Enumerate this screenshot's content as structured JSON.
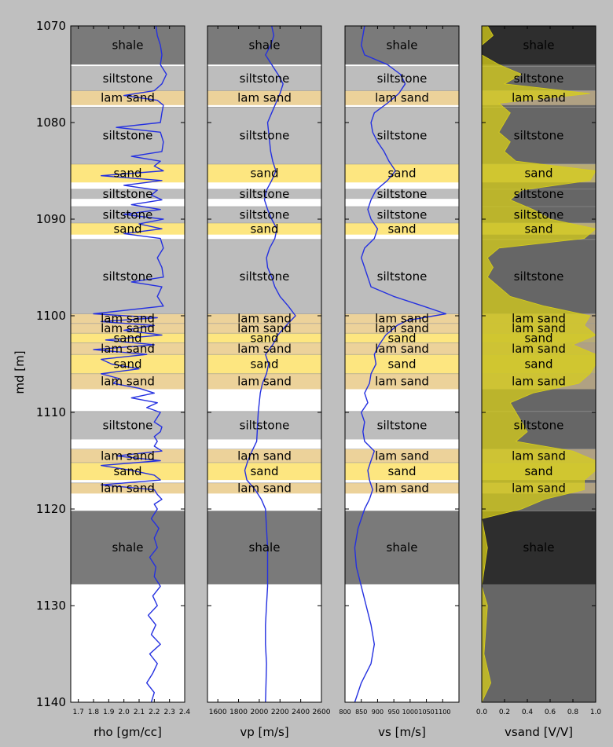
{
  "chart_data": {
    "type": "line",
    "y_axis": {
      "label": "md [m]",
      "range": [
        1070,
        1140
      ],
      "ticks": [
        1070,
        1080,
        1090,
        1100,
        1110,
        1120,
        1130,
        1140
      ]
    },
    "facies_colors": {
      "shale": "#7a7a7a",
      "shale_dark": "#2e2e2e",
      "siltstone": "#bdbdbd",
      "lam sand": "#ecd29a",
      "sand": "#fde680",
      "gap": "#ffffff",
      "vsand_bg": "#666666"
    },
    "facies": [
      {
        "top": 1070.0,
        "base": 1074.0,
        "label": "shale",
        "kind": "shale"
      },
      {
        "top": 1074.2,
        "base": 1076.7,
        "label": "siltstone",
        "kind": "siltstone"
      },
      {
        "top": 1076.7,
        "base": 1078.2,
        "label": "lam sand",
        "kind": "lam sand"
      },
      {
        "top": 1078.4,
        "base": 1084.3,
        "label": "siltstone",
        "kind": "siltstone"
      },
      {
        "top": 1084.3,
        "base": 1086.2,
        "label": "sand",
        "kind": "sand"
      },
      {
        "top": 1086.9,
        "base": 1087.9,
        "label": "siltstone",
        "kind": "siltstone"
      },
      {
        "top": 1088.7,
        "base": 1090.4,
        "label": "siltstone",
        "kind": "siltstone"
      },
      {
        "top": 1090.4,
        "base": 1091.6,
        "label": "sand",
        "kind": "sand"
      },
      {
        "top": 1092.1,
        "base": 1099.8,
        "label": "siltstone",
        "kind": "siltstone"
      },
      {
        "top": 1099.8,
        "base": 1100.8,
        "label": "lam sand",
        "kind": "lam sand"
      },
      {
        "top": 1100.8,
        "base": 1101.8,
        "label": "lam sand",
        "kind": "lam sand"
      },
      {
        "top": 1101.8,
        "base": 1102.8,
        "label": "sand",
        "kind": "sand"
      },
      {
        "top": 1102.8,
        "base": 1104.0,
        "label": "lam sand",
        "kind": "lam sand"
      },
      {
        "top": 1104.0,
        "base": 1106.0,
        "label": "sand",
        "kind": "sand"
      },
      {
        "top": 1106.0,
        "base": 1107.6,
        "label": "lam sand",
        "kind": "lam sand"
      },
      {
        "top": 1109.9,
        "base": 1112.8,
        "label": "siltstone",
        "kind": "siltstone"
      },
      {
        "top": 1113.8,
        "base": 1115.2,
        "label": "lam sand",
        "kind": "lam sand"
      },
      {
        "top": 1115.2,
        "base": 1117.0,
        "label": "sand",
        "kind": "sand"
      },
      {
        "top": 1117.3,
        "base": 1118.4,
        "label": "lam sand",
        "kind": "lam sand"
      },
      {
        "top": 1120.2,
        "base": 1127.8,
        "label": "shale",
        "kind": "shale"
      }
    ],
    "tracks": [
      {
        "xlabel": "rho [gm/cc]",
        "xlim": [
          1.65,
          2.4
        ],
        "ticks": [
          1.7,
          1.8,
          1.9,
          2.0,
          2.1,
          2.2,
          2.3,
          2.4
        ],
        "tick_labels": [
          "1.7",
          "1.8",
          "1.9",
          "2.0",
          "2.1",
          "2.2",
          "2.3",
          "2.4"
        ],
        "color": "#2430e0",
        "depth": [
          1070,
          1071,
          1072,
          1073,
          1074,
          1075,
          1076,
          1076.7,
          1077.2,
          1077.7,
          1078.2,
          1079,
          1080,
          1080.5,
          1081,
          1082,
          1083,
          1083.5,
          1084,
          1084.5,
          1085,
          1085.5,
          1086,
          1086.5,
          1087,
          1087.5,
          1088,
          1088.5,
          1089,
          1089.5,
          1090,
          1090.5,
          1091,
          1091.5,
          1092,
          1093,
          1094,
          1095,
          1096,
          1096.5,
          1097,
          1098,
          1099,
          1099.8,
          1100.2,
          1100.6,
          1101,
          1101.5,
          1102,
          1102.5,
          1103,
          1103.5,
          1104,
          1104.5,
          1105,
          1105.5,
          1106,
          1106.5,
          1107,
          1107.5,
          1108,
          1108.5,
          1109,
          1109.5,
          1110,
          1110.5,
          1111,
          1111.5,
          1112,
          1112.5,
          1113,
          1113.5,
          1114,
          1114.5,
          1115,
          1115.5,
          1116,
          1116.5,
          1117,
          1117.5,
          1118,
          1118.5,
          1119,
          1119.5,
          1120,
          1121,
          1122,
          1123,
          1124,
          1125,
          1126,
          1127,
          1128,
          1129,
          1130,
          1131,
          1132,
          1133,
          1134,
          1135,
          1136,
          1137,
          1138,
          1139,
          1140
        ],
        "values": [
          2.21,
          2.22,
          2.24,
          2.25,
          2.24,
          2.28,
          2.25,
          2.2,
          2.0,
          2.22,
          2.26,
          2.25,
          2.24,
          1.95,
          2.24,
          2.26,
          2.25,
          2.05,
          2.24,
          2.2,
          2.26,
          1.85,
          2.25,
          2.0,
          2.22,
          2.18,
          2.25,
          2.05,
          2.24,
          2.0,
          2.26,
          2.1,
          2.25,
          2.0,
          2.24,
          2.26,
          2.22,
          2.25,
          2.26,
          2.05,
          2.25,
          2.22,
          2.26,
          1.8,
          2.22,
          1.85,
          2.2,
          2.0,
          2.25,
          1.88,
          2.2,
          1.8,
          2.15,
          1.85,
          1.92,
          2.1,
          1.85,
          1.97,
          1.93,
          2.1,
          2.2,
          2.05,
          2.22,
          2.15,
          2.24,
          2.22,
          2.2,
          2.25,
          2.24,
          2.2,
          2.22,
          2.2,
          2.25,
          1.95,
          2.24,
          1.85,
          2.05,
          2.2,
          2.24,
          1.85,
          2.2,
          2.22,
          2.25,
          2.2,
          2.22,
          2.18,
          2.23,
          2.2,
          2.22,
          2.17,
          2.21,
          2.2,
          2.24,
          2.19,
          2.22,
          2.16,
          2.21,
          2.18,
          2.24,
          2.17,
          2.22,
          2.19,
          2.15,
          2.2,
          2.18
        ]
      },
      {
        "xlabel": "vp [m/s]",
        "xlim": [
          1500,
          2600
        ],
        "ticks": [
          1600,
          1800,
          2000,
          2200,
          2400,
          2600
        ],
        "tick_labels": [
          "1600",
          "1800",
          "2000",
          "2200",
          "2400",
          "2600"
        ],
        "color": "#2430e0",
        "depth": [
          1070,
          1071,
          1072,
          1073,
          1074,
          1075,
          1076,
          1077,
          1078,
          1079,
          1080,
          1081,
          1082,
          1083,
          1084,
          1085,
          1086,
          1087,
          1088,
          1089,
          1090,
          1091,
          1092,
          1093,
          1094,
          1095,
          1096,
          1097,
          1098,
          1099,
          1100,
          1101,
          1102,
          1103,
          1104,
          1105,
          1106,
          1107,
          1108,
          1109,
          1110,
          1111,
          1112,
          1113,
          1114,
          1115,
          1116,
          1117,
          1118,
          1119,
          1120,
          1122,
          1124,
          1126,
          1128,
          1130,
          1132,
          1134,
          1136,
          1138,
          1140
        ],
        "values": [
          2120,
          2140,
          2110,
          2060,
          2120,
          2180,
          2230,
          2200,
          2160,
          2120,
          2080,
          2090,
          2100,
          2110,
          2130,
          2160,
          2120,
          2070,
          2050,
          2080,
          2120,
          2170,
          2150,
          2100,
          2070,
          2080,
          2120,
          2150,
          2200,
          2280,
          2350,
          2260,
          2180,
          2130,
          2060,
          2090,
          2070,
          2030,
          2010,
          2000,
          1990,
          1985,
          1980,
          1975,
          1930,
          1890,
          1860,
          1880,
          1960,
          2020,
          2060,
          2070,
          2080,
          2080,
          2080,
          2070,
          2060,
          2060,
          2070,
          2065,
          2060
        ]
      },
      {
        "xlabel": "vs [m/s]",
        "xlim": [
          800,
          1150
        ],
        "ticks": [
          800,
          850,
          900,
          950,
          1000,
          1050,
          1100
        ],
        "tick_labels": [
          "800",
          "850",
          "900",
          "950",
          "1000",
          "1050",
          "1100"
        ],
        "color": "#2430e0",
        "depth": [
          1070,
          1071,
          1072,
          1073,
          1074,
          1075,
          1076,
          1077,
          1078,
          1079,
          1080,
          1081,
          1082,
          1083,
          1084,
          1085,
          1086,
          1087,
          1088,
          1089,
          1090,
          1091,
          1092,
          1093,
          1094,
          1095,
          1096,
          1097,
          1098,
          1099,
          1099.8,
          1100.5,
          1101,
          1102,
          1103,
          1104,
          1105,
          1106,
          1107,
          1108,
          1109,
          1110,
          1111,
          1112,
          1113,
          1114,
          1115,
          1116,
          1117,
          1118,
          1119,
          1120,
          1122,
          1124,
          1126,
          1128,
          1130,
          1132,
          1134,
          1136,
          1138,
          1140
        ],
        "values": [
          860,
          855,
          850,
          860,
          930,
          970,
          985,
          965,
          930,
          890,
          880,
          885,
          900,
          920,
          935,
          955,
          930,
          895,
          880,
          870,
          880,
          900,
          890,
          860,
          850,
          860,
          870,
          880,
          950,
          1040,
          1110,
          990,
          960,
          925,
          905,
          890,
          895,
          880,
          875,
          860,
          870,
          850,
          860,
          855,
          860,
          890,
          880,
          870,
          875,
          885,
          875,
          860,
          840,
          830,
          835,
          850,
          865,
          880,
          890,
          880,
          850,
          830
        ]
      },
      {
        "xlabel": "vsand [V/V]",
        "xlim": [
          0.0,
          1.0
        ],
        "ticks": [
          0.0,
          0.2,
          0.4,
          0.6,
          0.8,
          1.0
        ],
        "tick_labels": [
          "0.0",
          "0.2",
          "0.4",
          "0.6",
          "0.8",
          "1.0"
        ],
        "color": "#d8cf1a",
        "depth": [
          1070,
          1071,
          1072,
          1073,
          1074,
          1075,
          1076,
          1077,
          1078,
          1079,
          1080,
          1081,
          1082,
          1083,
          1084,
          1085,
          1086,
          1087,
          1088,
          1089,
          1090,
          1091,
          1092,
          1093,
          1094,
          1095,
          1096,
          1097,
          1098,
          1099,
          1100,
          1101,
          1102,
          1103,
          1104,
          1105,
          1106,
          1107,
          1108,
          1109,
          1110,
          1111,
          1112,
          1113,
          1114,
          1115,
          1116,
          1117,
          1118,
          1119,
          1120,
          1121,
          1124,
          1128,
          1130,
          1135,
          1138,
          1140
        ],
        "values": [
          0.05,
          0.1,
          0.0,
          0.0,
          0.15,
          0.35,
          0.2,
          0.95,
          0.15,
          0.25,
          0.2,
          0.15,
          0.25,
          0.2,
          0.3,
          1.0,
          0.95,
          0.35,
          0.25,
          0.45,
          0.6,
          1.0,
          0.9,
          0.15,
          0.05,
          0.1,
          0.05,
          0.15,
          0.25,
          0.55,
          0.95,
          0.9,
          1.0,
          0.8,
          1.0,
          1.0,
          0.95,
          0.85,
          0.45,
          0.25,
          0.3,
          0.35,
          0.4,
          0.3,
          0.8,
          1.0,
          1.0,
          0.9,
          0.9,
          0.55,
          0.35,
          0.0,
          0.05,
          0.0,
          0.05,
          0.02,
          0.08,
          0.0
        ]
      }
    ]
  }
}
